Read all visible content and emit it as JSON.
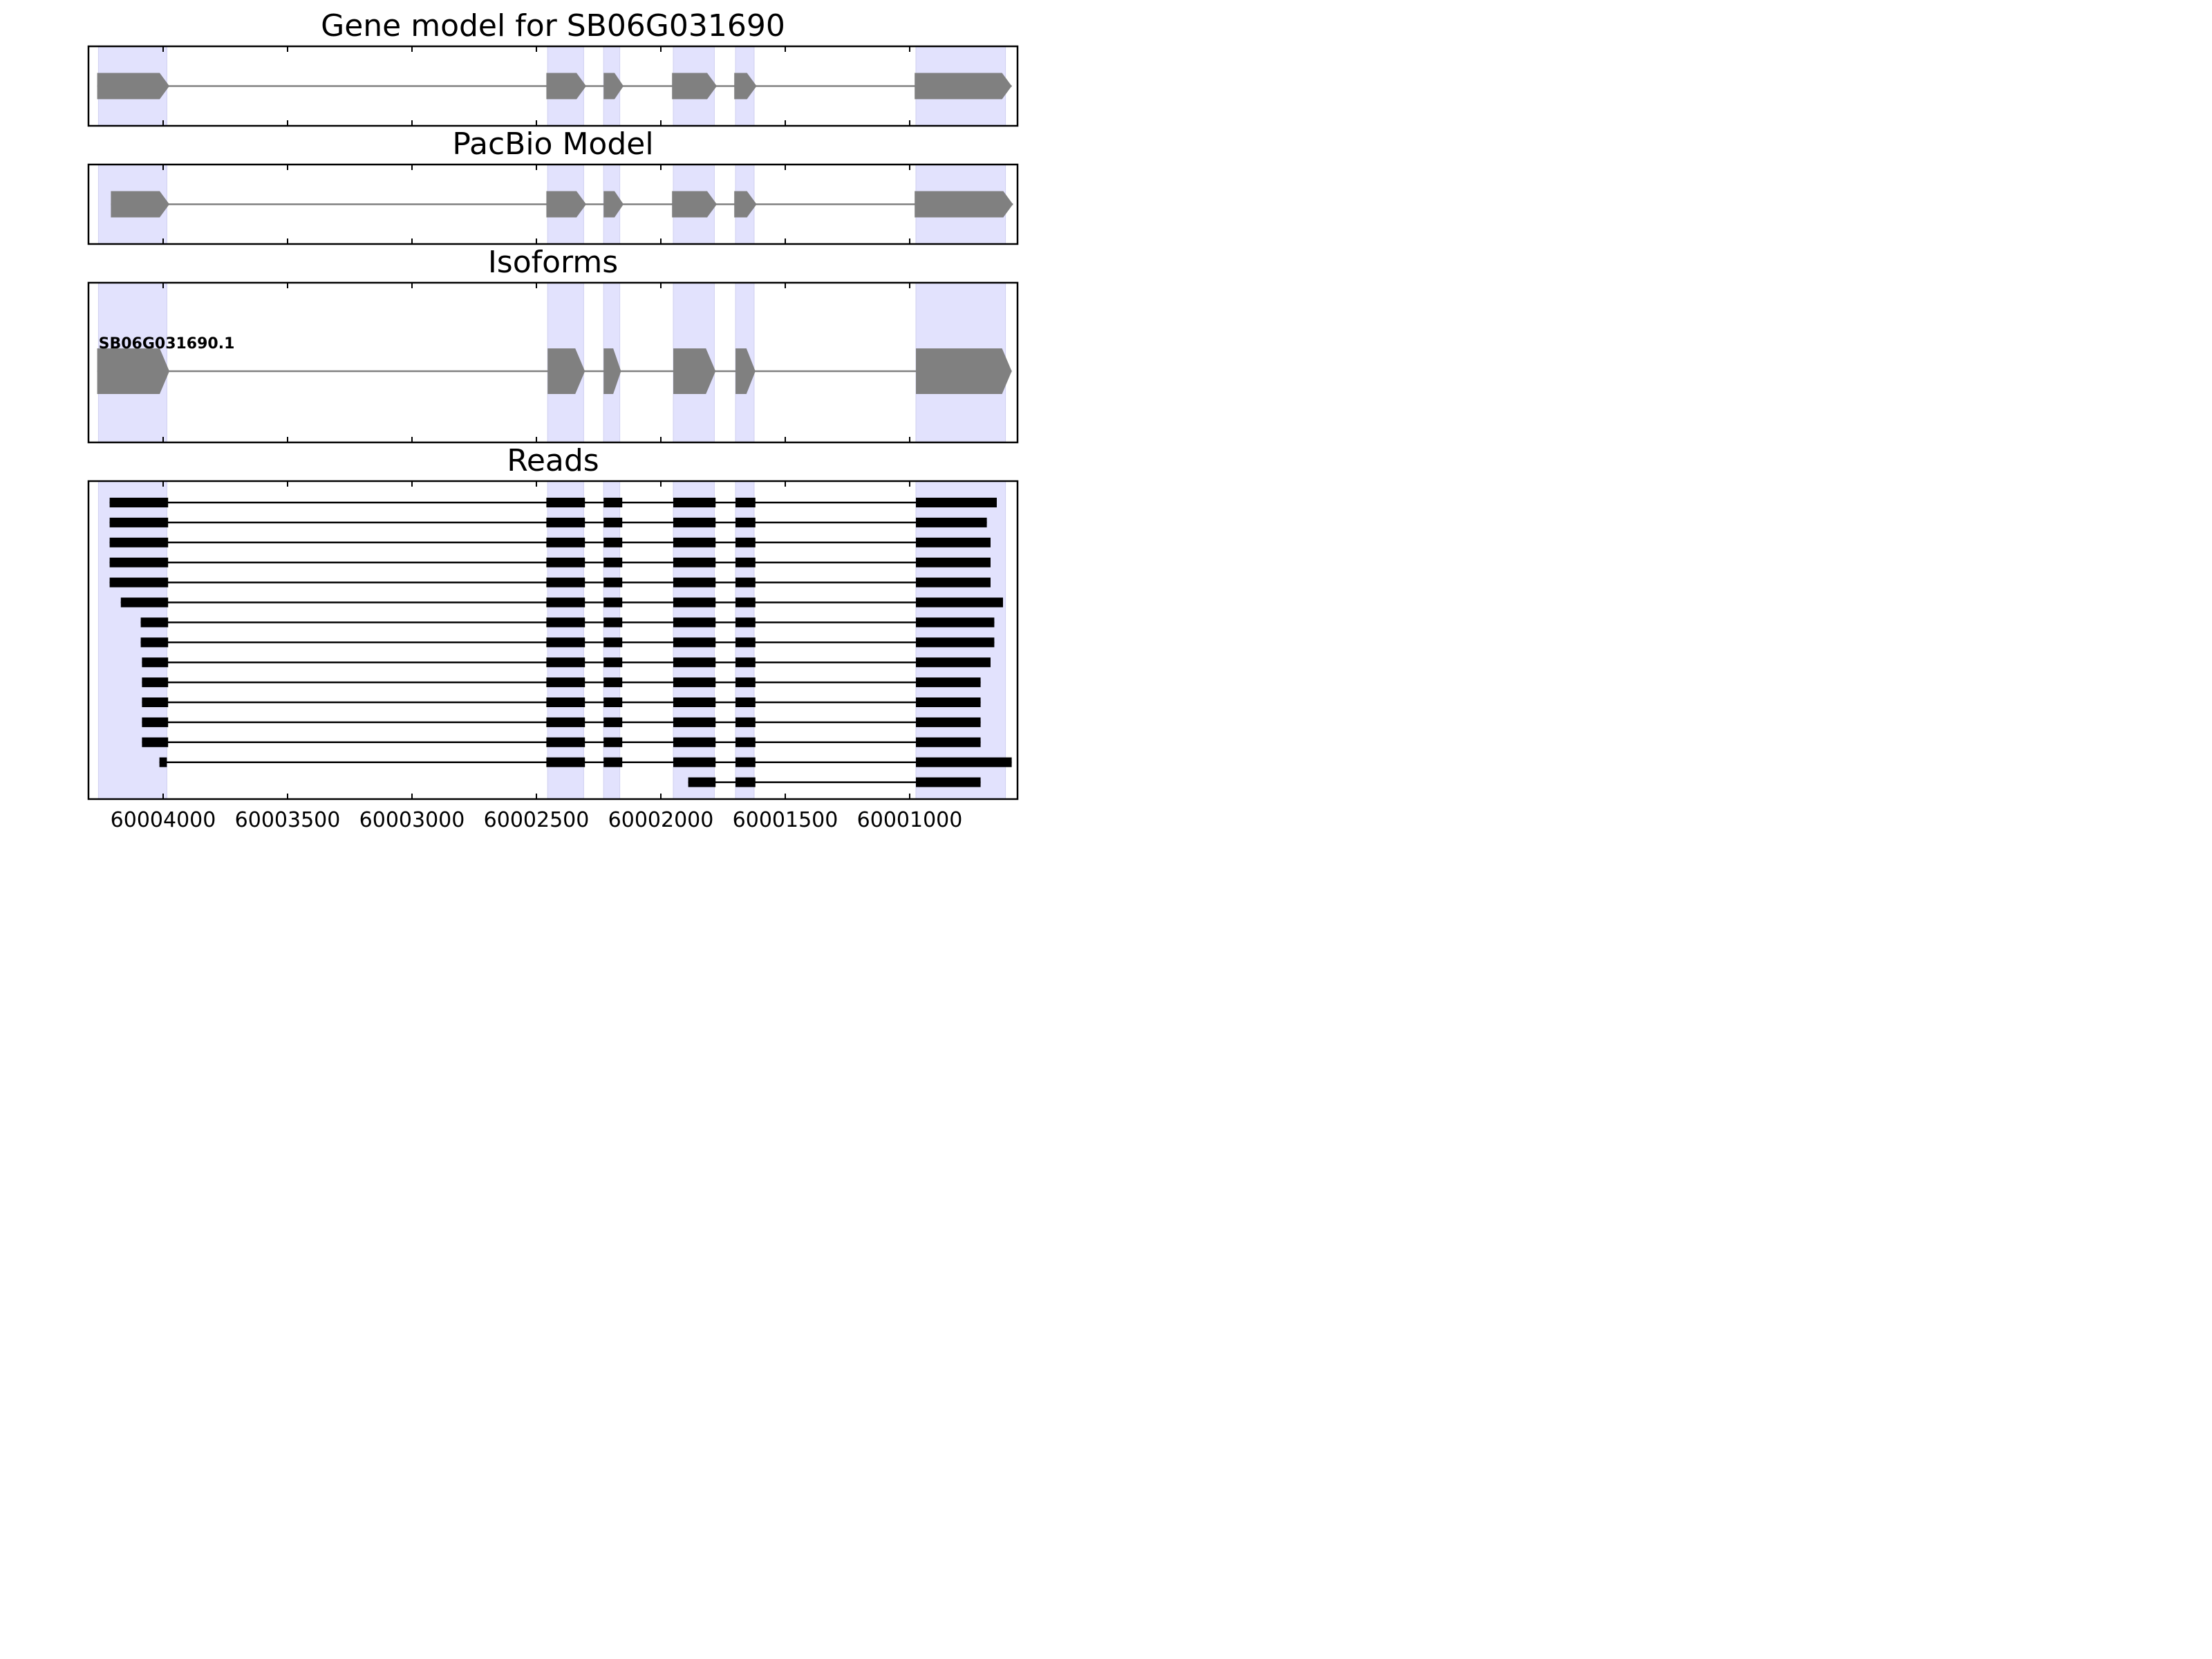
{
  "chart_data": {
    "type": "gene-structure",
    "x_axis": {
      "direction": "reversed",
      "range": [
        60004300,
        60000570
      ],
      "ticks": [
        60004000,
        60003500,
        60003000,
        60002500,
        60002000,
        60001500,
        60001000
      ],
      "tick_labels": [
        "60004000",
        "60003500",
        "60003000",
        "60002500",
        "60002000",
        "60001500",
        "60001000"
      ]
    },
    "highlight_color": "#e2e2fd",
    "exon_regions": [
      [
        60004260,
        60003985
      ],
      [
        60002455,
        60002310
      ],
      [
        60002230,
        60002165
      ],
      [
        60001950,
        60001785
      ],
      [
        60001700,
        60001625
      ],
      [
        60000975,
        60000615
      ]
    ],
    "panels": [
      {
        "title": "Gene model for SB06G031690",
        "kind": "model",
        "color": "#808080",
        "exons": [
          [
            60004265,
            60003975
          ],
          [
            60002460,
            60002300
          ],
          [
            60002230,
            60002150
          ],
          [
            60001955,
            60001775
          ],
          [
            60001705,
            60001615
          ],
          [
            60000980,
            60000590
          ]
        ]
      },
      {
        "title": "PacBio Model",
        "kind": "model",
        "color": "#808080",
        "exons": [
          [
            60004210,
            60003975
          ],
          [
            60002460,
            60002300
          ],
          [
            60002230,
            60002150
          ],
          [
            60001955,
            60001775
          ],
          [
            60001705,
            60001615
          ],
          [
            60000980,
            60000585
          ]
        ]
      },
      {
        "title": "Isoforms",
        "kind": "isoforms",
        "color": "#808080",
        "isoforms": [
          {
            "label": "SB06G031690.1",
            "exons": [
              [
                60004265,
                60003975
              ],
              [
                60002455,
                60002305
              ],
              [
                60002230,
                60002160
              ],
              [
                60001950,
                60001780
              ],
              [
                60001700,
                60001620
              ],
              [
                60000975,
                60000590
              ]
            ]
          }
        ]
      },
      {
        "title": "Reads",
        "kind": "reads",
        "color": "#000000",
        "reads": [
          [
            [
              60004215,
              60003980
            ],
            [
              60002460,
              60002305
            ],
            [
              60002230,
              60002155
            ],
            [
              60001950,
              60001780
            ],
            [
              60001700,
              60001620
            ],
            [
              60000975,
              60000650
            ]
          ],
          [
            [
              60004215,
              60003980
            ],
            [
              60002460,
              60002305
            ],
            [
              60002230,
              60002155
            ],
            [
              60001950,
              60001780
            ],
            [
              60001700,
              60001620
            ],
            [
              60000975,
              60000690
            ]
          ],
          [
            [
              60004215,
              60003980
            ],
            [
              60002460,
              60002305
            ],
            [
              60002230,
              60002155
            ],
            [
              60001950,
              60001780
            ],
            [
              60001700,
              60001620
            ],
            [
              60000975,
              60000675
            ]
          ],
          [
            [
              60004215,
              60003980
            ],
            [
              60002460,
              60002305
            ],
            [
              60002230,
              60002155
            ],
            [
              60001950,
              60001780
            ],
            [
              60001700,
              60001620
            ],
            [
              60000975,
              60000675
            ]
          ],
          [
            [
              60004215,
              60003980
            ],
            [
              60002460,
              60002305
            ],
            [
              60002230,
              60002155
            ],
            [
              60001950,
              60001780
            ],
            [
              60001700,
              60001620
            ],
            [
              60000975,
              60000675
            ]
          ],
          [
            [
              60004170,
              60003980
            ],
            [
              60002460,
              60002305
            ],
            [
              60002230,
              60002155
            ],
            [
              60001950,
              60001780
            ],
            [
              60001700,
              60001620
            ],
            [
              60000975,
              60000625
            ]
          ],
          [
            [
              60004090,
              60003980
            ],
            [
              60002460,
              60002305
            ],
            [
              60002230,
              60002155
            ],
            [
              60001950,
              60001780
            ],
            [
              60001700,
              60001620
            ],
            [
              60000975,
              60000660
            ]
          ],
          [
            [
              60004090,
              60003980
            ],
            [
              60002460,
              60002305
            ],
            [
              60002230,
              60002155
            ],
            [
              60001950,
              60001780
            ],
            [
              60001700,
              60001620
            ],
            [
              60000975,
              60000660
            ]
          ],
          [
            [
              60004085,
              60003980
            ],
            [
              60002460,
              60002305
            ],
            [
              60002230,
              60002155
            ],
            [
              60001950,
              60001780
            ],
            [
              60001700,
              60001620
            ],
            [
              60000975,
              60000675
            ]
          ],
          [
            [
              60004085,
              60003980
            ],
            [
              60002460,
              60002305
            ],
            [
              60002230,
              60002155
            ],
            [
              60001950,
              60001780
            ],
            [
              60001700,
              60001620
            ],
            [
              60000975,
              60000715
            ]
          ],
          [
            [
              60004085,
              60003980
            ],
            [
              60002460,
              60002305
            ],
            [
              60002230,
              60002155
            ],
            [
              60001950,
              60001780
            ],
            [
              60001700,
              60001620
            ],
            [
              60000975,
              60000715
            ]
          ],
          [
            [
              60004085,
              60003980
            ],
            [
              60002460,
              60002305
            ],
            [
              60002230,
              60002155
            ],
            [
              60001950,
              60001780
            ],
            [
              60001700,
              60001620
            ],
            [
              60000975,
              60000715
            ]
          ],
          [
            [
              60004085,
              60003980
            ],
            [
              60002460,
              60002305
            ],
            [
              60002230,
              60002155
            ],
            [
              60001950,
              60001780
            ],
            [
              60001700,
              60001620
            ],
            [
              60000975,
              60000715
            ]
          ],
          [
            [
              60004015,
              60003985
            ],
            [
              60002460,
              60002305
            ],
            [
              60002230,
              60002155
            ],
            [
              60001950,
              60001780
            ],
            [
              60001700,
              60001620
            ],
            [
              60000975,
              60000590
            ]
          ],
          [
            [
              60001890,
              60001780
            ],
            [
              60001700,
              60001620
            ],
            [
              60000975,
              60000715
            ]
          ]
        ]
      }
    ]
  }
}
